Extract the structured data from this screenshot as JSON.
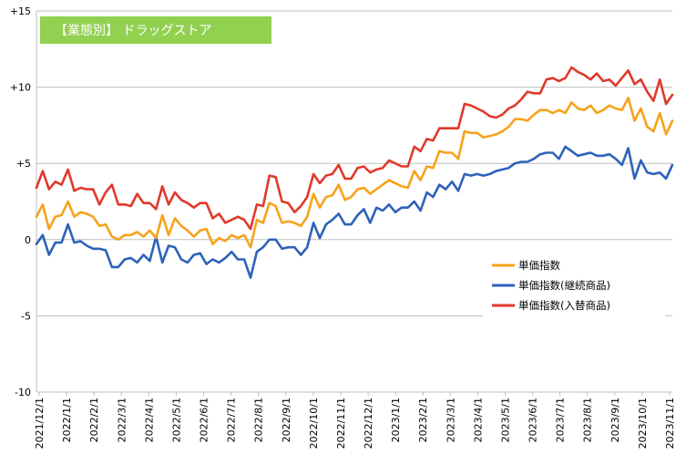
{
  "chart_data": {
    "type": "line",
    "title": "【業態別】 ドラッグストア",
    "title_bg_color": "#92d050",
    "xlabel": "",
    "ylabel": "",
    "ylim": [
      -10,
      15
    ],
    "yticks": [
      -10,
      -5,
      0,
      5,
      10,
      15
    ],
    "ytick_labels": [
      "-10",
      "-5",
      "0",
      "+5",
      "+10",
      "+15"
    ],
    "xtick_labels": [
      "2021/12/1",
      "2022/1/1",
      "2022/2/1",
      "2022/3/1",
      "2022/4/1",
      "2022/5/1",
      "2022/6/1",
      "2022/7/1",
      "2022/8/1",
      "2022/9/1",
      "2022/10/1",
      "2022/11/1",
      "2022/12/1",
      "2023/1/1",
      "2023/2/1",
      "2023/3/1",
      "2023/4/1",
      "2023/5/1",
      "2023/6/1",
      "2023/7/1",
      "2023/8/1",
      "2023/9/1",
      "2023/10/1",
      "2023/11/1"
    ],
    "grid": "horizontal",
    "legend_position": "right",
    "series": [
      {
        "name": "単価指数",
        "color": "#f7a21b",
        "values": [
          1.5,
          2.3,
          0.7,
          1.5,
          1.6,
          2.5,
          1.5,
          1.8,
          1.7,
          1.5,
          0.9,
          1.0,
          0.2,
          0.0,
          0.3,
          0.3,
          0.5,
          0.2,
          0.6,
          0.1,
          1.6,
          0.3,
          1.4,
          0.9,
          0.6,
          0.2,
          0.6,
          0.7,
          -0.3,
          0.1,
          -0.1,
          0.3,
          0.1,
          0.3,
          -0.5,
          1.3,
          1.1,
          2.4,
          2.2,
          1.1,
          1.2,
          1.1,
          0.9,
          1.5,
          3.0,
          2.1,
          2.8,
          2.9,
          3.6,
          2.6,
          2.8,
          3.3,
          3.4,
          3.0,
          3.3,
          3.6,
          3.9,
          3.7,
          3.5,
          3.4,
          4.5,
          3.9,
          4.8,
          4.7,
          5.8,
          5.7,
          5.7,
          5.3,
          7.1,
          7.0,
          7.0,
          6.7,
          6.8,
          6.9,
          7.1,
          7.4,
          7.9,
          7.9,
          7.8,
          8.2,
          8.5,
          8.5,
          8.3,
          8.5,
          8.3,
          9.0,
          8.6,
          8.5,
          8.8,
          8.3,
          8.5,
          8.8,
          8.6,
          8.5,
          9.3,
          7.8,
          8.6,
          7.4,
          7.1,
          8.3,
          6.9,
          7.8
        ]
      },
      {
        "name": "単価指数(継続商品)",
        "color": "#2e62b9",
        "values": [
          -0.3,
          0.3,
          -1.0,
          -0.2,
          -0.2,
          1.0,
          -0.2,
          -0.1,
          -0.4,
          -0.6,
          -0.6,
          -0.7,
          -1.8,
          -1.8,
          -1.3,
          -1.2,
          -1.5,
          -1.0,
          -1.4,
          0.2,
          -1.5,
          -0.4,
          -0.5,
          -1.3,
          -1.5,
          -1.0,
          -0.9,
          -1.6,
          -1.3,
          -1.5,
          -1.2,
          -0.8,
          -1.3,
          -1.3,
          -2.5,
          -0.8,
          -0.5,
          0.0,
          0.0,
          -0.6,
          -0.5,
          -0.5,
          -1.0,
          -0.5,
          1.1,
          0.1,
          1.0,
          1.3,
          1.7,
          1.0,
          1.0,
          1.6,
          2.0,
          1.1,
          2.1,
          1.9,
          2.3,
          1.8,
          2.1,
          2.1,
          2.5,
          1.9,
          3.1,
          2.8,
          3.6,
          3.3,
          3.8,
          3.2,
          4.3,
          4.2,
          4.3,
          4.2,
          4.3,
          4.5,
          4.6,
          4.7,
          5.0,
          5.1,
          5.1,
          5.3,
          5.6,
          5.7,
          5.7,
          5.3,
          6.1,
          5.8,
          5.5,
          5.6,
          5.7,
          5.5,
          5.5,
          5.6,
          5.3,
          4.9,
          6.0,
          4.0,
          5.2,
          4.4,
          4.3,
          4.4,
          4.0,
          4.9
        ]
      },
      {
        "name": "単価指数(入替商品)",
        "color": "#e0392c",
        "values": [
          3.4,
          4.5,
          3.3,
          3.8,
          3.6,
          4.6,
          3.2,
          3.4,
          3.3,
          3.3,
          2.3,
          3.1,
          3.6,
          2.3,
          2.3,
          2.2,
          3.0,
          2.4,
          2.4,
          2.0,
          3.5,
          2.3,
          3.1,
          2.6,
          2.4,
          2.1,
          2.4,
          2.4,
          1.4,
          1.7,
          1.1,
          1.3,
          1.5,
          1.3,
          0.7,
          2.3,
          2.2,
          4.2,
          4.1,
          2.5,
          2.4,
          1.8,
          2.2,
          2.8,
          4.3,
          3.7,
          4.2,
          4.3,
          4.9,
          4.0,
          4.0,
          4.7,
          4.8,
          4.4,
          4.6,
          4.7,
          5.2,
          5.0,
          4.8,
          4.8,
          6.1,
          5.8,
          6.6,
          6.5,
          7.3,
          7.3,
          7.3,
          7.3,
          8.9,
          8.8,
          8.6,
          8.4,
          8.1,
          8.0,
          8.2,
          8.6,
          8.8,
          9.2,
          9.7,
          9.6,
          9.6,
          10.5,
          10.6,
          10.4,
          10.6,
          11.3,
          11.0,
          10.8,
          10.5,
          10.9,
          10.4,
          10.5,
          10.1,
          10.6,
          11.1,
          10.2,
          10.5,
          9.7,
          9.1,
          10.5,
          8.9,
          9.5
        ]
      }
    ]
  }
}
